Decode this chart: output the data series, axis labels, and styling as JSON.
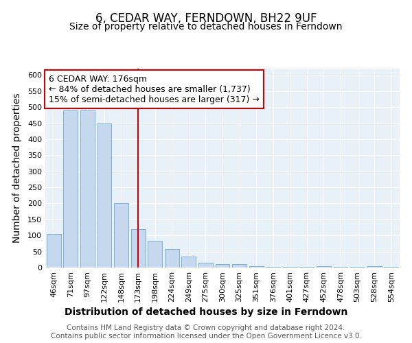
{
  "title": "6, CEDAR WAY, FERNDOWN, BH22 9UF",
  "subtitle": "Size of property relative to detached houses in Ferndown",
  "xlabel": "Distribution of detached houses by size in Ferndown",
  "ylabel": "Number of detached properties",
  "categories": [
    "46sqm",
    "71sqm",
    "97sqm",
    "122sqm",
    "148sqm",
    "173sqm",
    "198sqm",
    "224sqm",
    "249sqm",
    "275sqm",
    "300sqm",
    "325sqm",
    "351sqm",
    "376sqm",
    "401sqm",
    "427sqm",
    "452sqm",
    "478sqm",
    "503sqm",
    "528sqm",
    "554sqm"
  ],
  "values": [
    105,
    490,
    490,
    450,
    200,
    120,
    83,
    57,
    35,
    15,
    10,
    10,
    5,
    2,
    2,
    2,
    5,
    2,
    2,
    5,
    2
  ],
  "bar_color": "#c5d8ee",
  "bar_edge_color": "#7aafd4",
  "ref_line_x": 5.0,
  "ref_line_color": "#cc0000",
  "annotation_text": "6 CEDAR WAY: 176sqm\n← 84% of detached houses are smaller (1,737)\n15% of semi-detached houses are larger (317) →",
  "annotation_box_color": "#ffffff",
  "annotation_box_edge": "#cc0000",
  "ylim": [
    0,
    620
  ],
  "yticks": [
    0,
    50,
    100,
    150,
    200,
    250,
    300,
    350,
    400,
    450,
    500,
    550,
    600
  ],
  "background_color": "#e8f0f8",
  "footer_text": "Contains HM Land Registry data © Crown copyright and database right 2024.\nContains public sector information licensed under the Open Government Licence v3.0.",
  "title_fontsize": 12,
  "subtitle_fontsize": 10,
  "axis_label_fontsize": 10,
  "tick_fontsize": 8,
  "footer_fontsize": 7.5,
  "annotation_fontsize": 9
}
